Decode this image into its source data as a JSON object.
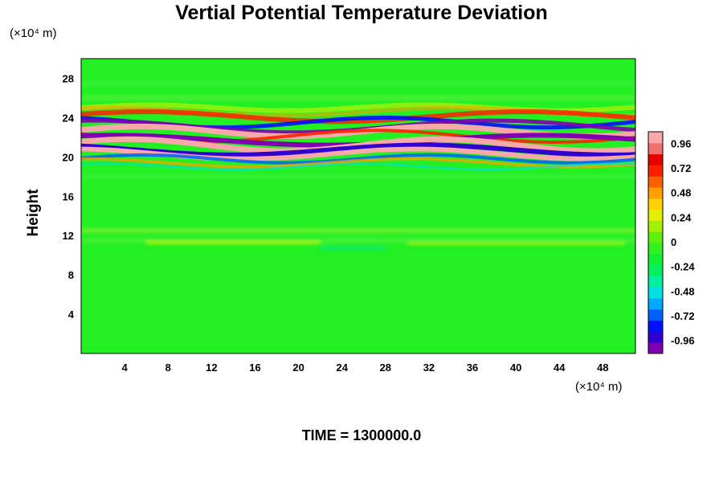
{
  "chart_data": {
    "type": "heatmap",
    "title": "Vertial Potential Temperature Deviation",
    "ylabel": "Height",
    "xlabel": "",
    "x_unit_label": "(×10⁴ m)",
    "y_unit_label": "(×10⁴ m)",
    "annotation": "TIME = 1300000.0",
    "xlim": [
      0,
      51
    ],
    "ylim": [
      0,
      30
    ],
    "x_ticks": [
      4,
      8,
      12,
      16,
      20,
      24,
      28,
      32,
      36,
      40,
      44,
      48
    ],
    "y_ticks": [
      4,
      8,
      12,
      16,
      20,
      24,
      28
    ],
    "colorbar": {
      "min": -1.08,
      "max": 1.08,
      "ticks": [
        0.96,
        0.72,
        0.48,
        0.24,
        0,
        -0.24,
        -0.48,
        -0.72,
        -0.96
      ],
      "tick_labels": [
        "0.96",
        "0.72",
        "0.48",
        "0.24",
        "0",
        "-0.24",
        "-0.48",
        "-0.72",
        "-0.96"
      ],
      "colors": [
        "#8000b0",
        "#3000d0",
        "#0010ff",
        "#0060ff",
        "#00a8ff",
        "#00e0e0",
        "#00f0a0",
        "#00f060",
        "#10f030",
        "#30f020",
        "#60f010",
        "#a0f000",
        "#e0f000",
        "#ffd000",
        "#ffa000",
        "#ff6000",
        "#ff2000",
        "#e80000",
        "#f07070",
        "#f8a8a8"
      ]
    },
    "background_color": "#22f022",
    "bands": [
      {
        "y": 20.2,
        "pattern": "purple"
      },
      {
        "y": 20.8,
        "pattern": "pink"
      },
      {
        "y": 21.4,
        "pattern": "purple"
      },
      {
        "y": 22.0,
        "pattern": "pink"
      },
      {
        "y": 22.8,
        "pattern": "purple"
      },
      {
        "y": 23.8,
        "pattern": "red"
      }
    ]
  }
}
